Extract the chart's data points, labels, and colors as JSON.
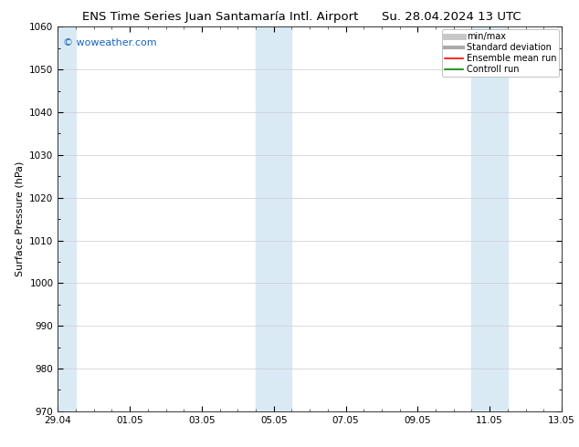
{
  "title_left": "ENS Time Series Juan Santamaría Intl. Airport",
  "title_right": "Su. 28.04.2024 13 UTC",
  "ylabel": "Surface Pressure (hPa)",
  "ylim": [
    970,
    1060
  ],
  "yticks": [
    970,
    980,
    990,
    1000,
    1010,
    1020,
    1030,
    1040,
    1050,
    1060
  ],
  "x_labels": [
    "29.04",
    "01.05",
    "03.05",
    "05.05",
    "07.05",
    "09.05",
    "11.05",
    "13.05"
  ],
  "x_values": [
    0,
    2,
    4,
    6,
    8,
    10,
    12,
    14
  ],
  "xlim": [
    0,
    14
  ],
  "bg_color": "#ffffff",
  "plot_bg_color": "#ffffff",
  "shaded_bands": [
    {
      "x_start": 0.0,
      "x_end": 0.5,
      "color": "#daeaf5"
    },
    {
      "x_start": 5.5,
      "x_end": 6.0,
      "color": "#daeaf5"
    },
    {
      "x_start": 6.0,
      "x_end": 6.5,
      "color": "#daeaf5"
    },
    {
      "x_start": 11.5,
      "x_end": 12.0,
      "color": "#daeaf5"
    },
    {
      "x_start": 12.0,
      "x_end": 12.5,
      "color": "#daeaf5"
    }
  ],
  "watermark": "© woweather.com",
  "watermark_color": "#1565c0",
  "legend_items": [
    {
      "label": "min/max",
      "color": "#c8c8c8",
      "lw": 5
    },
    {
      "label": "Standard deviation",
      "color": "#aaaaaa",
      "lw": 3
    },
    {
      "label": "Ensemble mean run",
      "color": "#ff0000",
      "lw": 1.2
    },
    {
      "label": "Controll run",
      "color": "#008000",
      "lw": 1.2
    }
  ],
  "grid_color": "#cccccc",
  "title_fontsize": 9.5,
  "axis_label_fontsize": 8,
  "tick_fontsize": 7.5,
  "legend_fontsize": 7
}
